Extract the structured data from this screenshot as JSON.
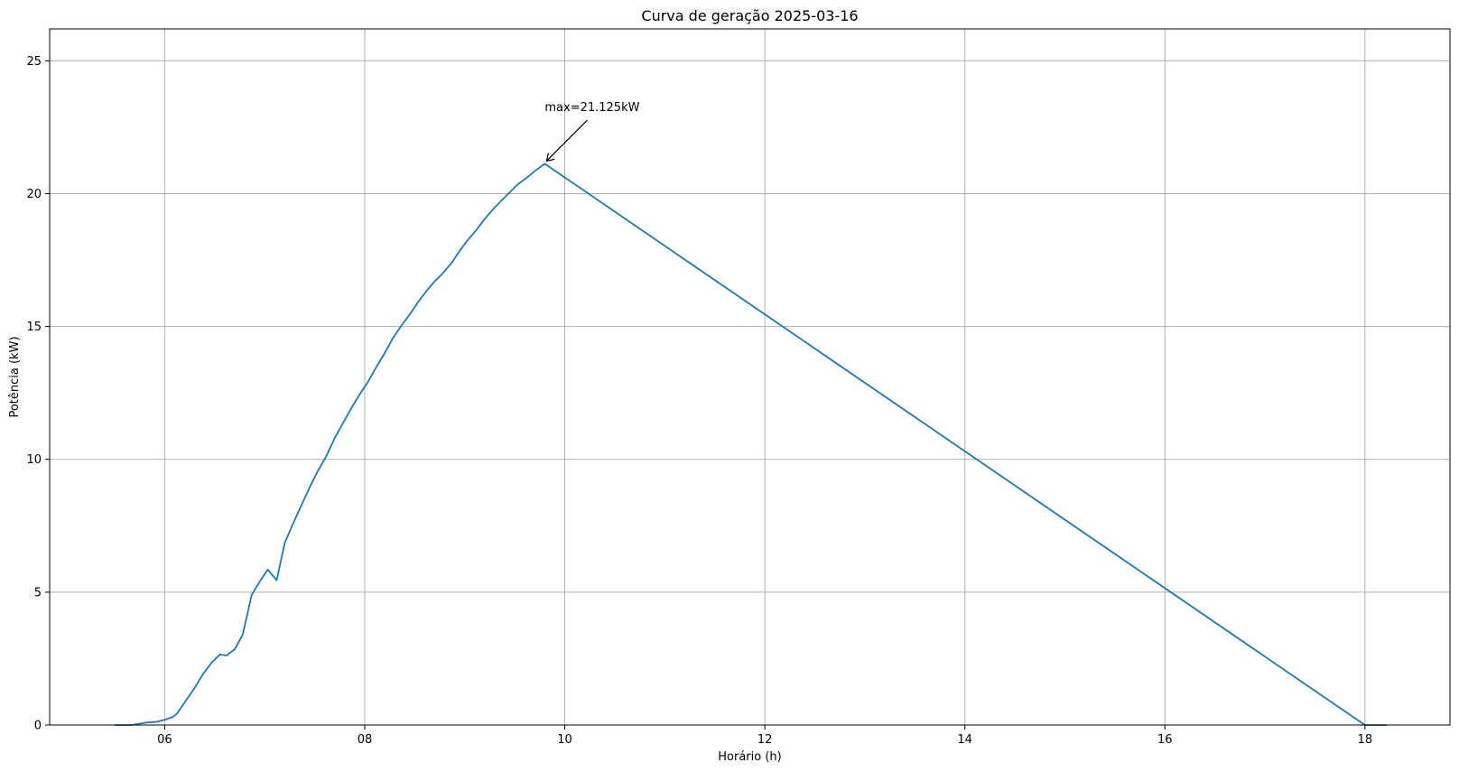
{
  "chart_data": {
    "type": "line",
    "title": "Curva de geração 2025-03-16",
    "xlabel": "Horário (h)",
    "ylabel": "Potência (kW)",
    "xlim": [
      4.85,
      18.85
    ],
    "ylim": [
      0,
      26.2
    ],
    "x_ticks": [
      6,
      8,
      10,
      12,
      14,
      16,
      18
    ],
    "x_tick_labels": [
      "06",
      "08",
      "10",
      "12",
      "14",
      "16",
      "18"
    ],
    "y_ticks": [
      0,
      5,
      10,
      15,
      20,
      25
    ],
    "y_tick_labels": [
      "0",
      "5",
      "10",
      "15",
      "20",
      "25"
    ],
    "grid": true,
    "series": [
      {
        "color": "#1f77b4",
        "x": [
          5.5,
          5.58,
          5.67,
          5.75,
          5.83,
          5.92,
          6.0,
          6.08,
          6.12,
          6.2,
          6.3,
          6.38,
          6.47,
          6.55,
          6.62,
          6.7,
          6.78,
          6.87,
          6.95,
          7.03,
          7.12,
          7.2,
          7.28,
          7.37,
          7.45,
          7.53,
          7.62,
          7.7,
          7.78,
          7.87,
          7.95,
          8.03,
          8.12,
          8.2,
          8.28,
          8.37,
          8.45,
          8.53,
          8.62,
          8.7,
          8.78,
          8.87,
          8.95,
          9.03,
          9.12,
          9.2,
          9.28,
          9.37,
          9.45,
          9.53,
          9.62,
          9.7,
          9.8,
          18.0,
          18.22
        ],
        "y": [
          0.0,
          0.0,
          0.0,
          0.05,
          0.1,
          0.12,
          0.2,
          0.3,
          0.42,
          0.85,
          1.4,
          1.9,
          2.35,
          2.65,
          2.62,
          2.85,
          3.4,
          4.9,
          5.4,
          5.85,
          5.45,
          6.85,
          7.55,
          8.3,
          8.95,
          9.55,
          10.15,
          10.8,
          11.35,
          11.95,
          12.45,
          12.9,
          13.5,
          14.0,
          14.55,
          15.05,
          15.45,
          15.9,
          16.35,
          16.7,
          17.0,
          17.4,
          17.85,
          18.25,
          18.65,
          19.05,
          19.4,
          19.75,
          20.05,
          20.35,
          20.6,
          20.85,
          21.125,
          0.0,
          0.0
        ]
      }
    ],
    "annotations": [
      {
        "text": "max=21.125kW",
        "x": 9.8,
        "y": 21.125,
        "text_x": 9.8,
        "text_y": 23.1
      }
    ]
  }
}
